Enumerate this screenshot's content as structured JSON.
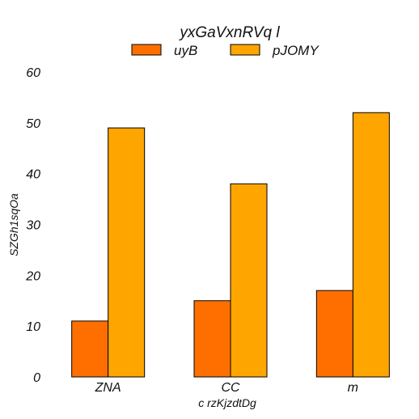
{
  "chart_data": {
    "type": "bar",
    "title": "yxGaVxnRVq l",
    "xlabel": "c rzKjzdtDg",
    "ylabel": "SZGh1sqOa",
    "categories": [
      "ZNA",
      "CC",
      "m"
    ],
    "series": [
      {
        "name": "uyB",
        "values": [
          11,
          15,
          17
        ],
        "color": "#ff6f00"
      },
      {
        "name": "pJOMY",
        "values": [
          49,
          38,
          52
        ],
        "color": "#ffa500"
      }
    ],
    "ylim": [
      0,
      60
    ],
    "yticks": [
      0,
      10,
      20,
      30,
      40,
      50,
      60
    ],
    "grid": false,
    "legend_position": "top-center"
  }
}
